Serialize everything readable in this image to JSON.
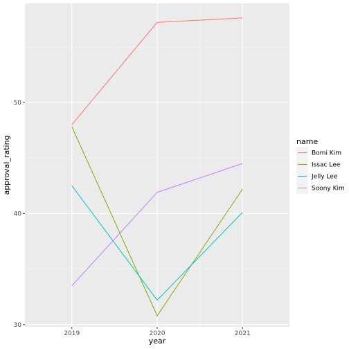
{
  "chart_data": {
    "type": "line",
    "xlabel": "year",
    "ylabel": "approval_rating",
    "x": [
      2019,
      2020,
      2021
    ],
    "xlim": [
      2018.45,
      2021.55
    ],
    "ylim": [
      29.8,
      58.9
    ],
    "y_ticks": [
      30,
      40,
      50
    ],
    "grid": true,
    "legend": {
      "title": "name",
      "placement": "right"
    },
    "series": [
      {
        "name": "Bomi Kim",
        "color": "#F8766D",
        "values": [
          48.0,
          57.2,
          57.6
        ]
      },
      {
        "name": "Issac Lee",
        "color": "#7CAE00",
        "values": [
          47.8,
          30.8,
          42.2
        ]
      },
      {
        "name": "Jelly Lee",
        "color": "#00BFC4",
        "values": [
          42.5,
          32.2,
          40.1
        ]
      },
      {
        "name": "Soony Kim",
        "color": "#C77CFF",
        "values": [
          33.5,
          41.9,
          44.5
        ]
      }
    ]
  },
  "theme": {
    "panel_background": "#EBEBEB",
    "grid_major": "#FFFFFF",
    "grid_minor": "#F5F5F5"
  }
}
